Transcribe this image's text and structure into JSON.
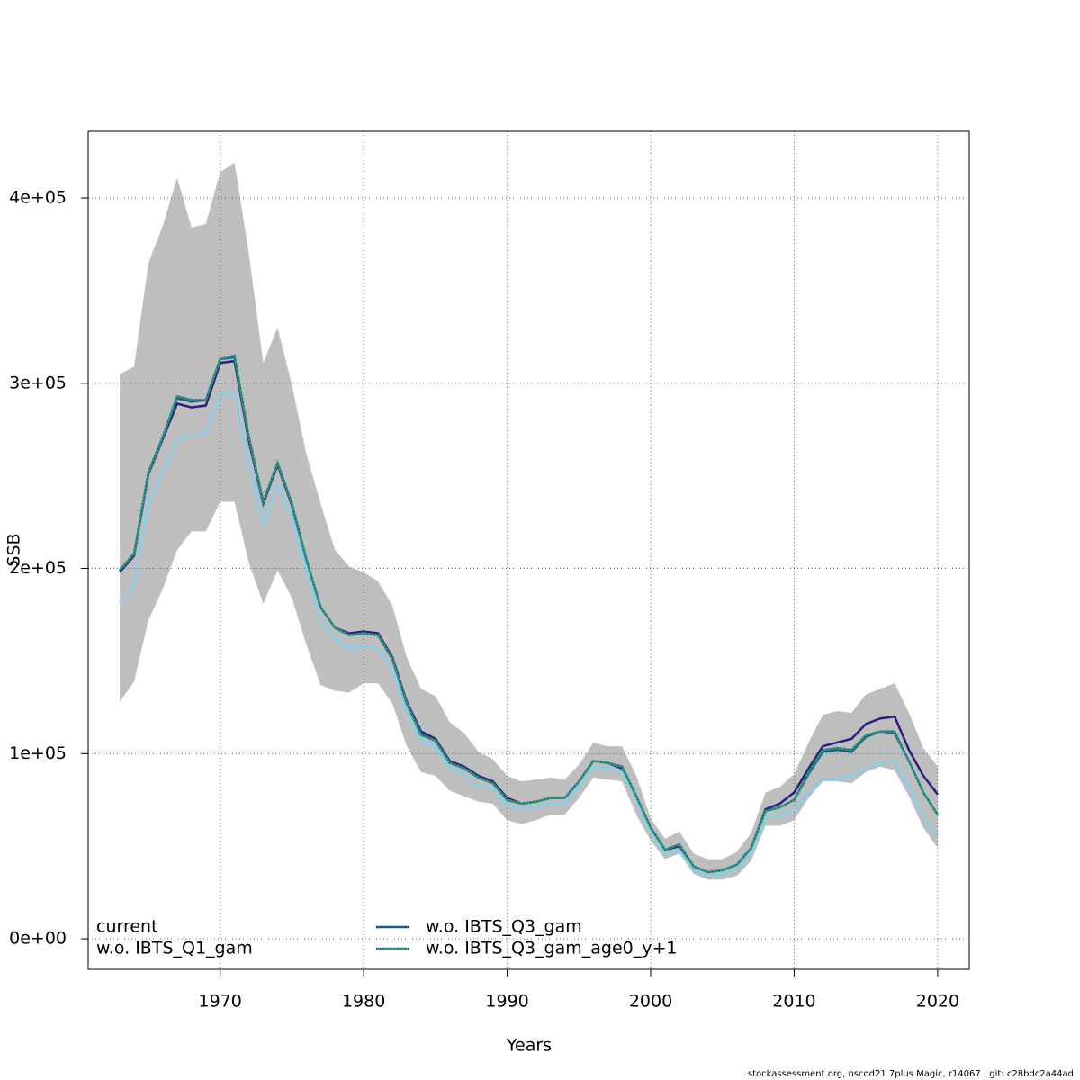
{
  "chart_data": {
    "type": "line",
    "xlabel": "Years",
    "ylabel": "SSB",
    "footer": "stockassessment.org, nscod21 7plus Magic, r14067 , git: c28bdc2a44ad",
    "xlim": [
      1960.8,
      2022.2
    ],
    "ylim": [
      -16500,
      436000
    ],
    "xticks": [
      1970,
      1980,
      1990,
      2000,
      2010,
      2020
    ],
    "yticks": [
      {
        "value": 0,
        "label": "0e+00"
      },
      {
        "value": 100000,
        "label": "1e+05"
      },
      {
        "value": 200000,
        "label": "2e+05"
      },
      {
        "value": 300000,
        "label": "3e+05"
      },
      {
        "value": 400000,
        "label": "4e+05"
      }
    ],
    "grid": true,
    "legend": "bottom-left",
    "x": [
      1963,
      1964,
      1965,
      1966,
      1967,
      1968,
      1969,
      1970,
      1971,
      1972,
      1973,
      1974,
      1975,
      1976,
      1977,
      1978,
      1979,
      1980,
      1981,
      1982,
      1983,
      1984,
      1985,
      1986,
      1987,
      1988,
      1989,
      1990,
      1991,
      1992,
      1993,
      1994,
      1995,
      1996,
      1997,
      1998,
      1999,
      2000,
      2001,
      2002,
      2003,
      2004,
      2005,
      2006,
      2007,
      2008,
      2009,
      2010,
      2011,
      2012,
      2013,
      2014,
      2015,
      2016,
      2017,
      2018,
      2019,
      2020
    ],
    "band": {
      "color": "#bebebe",
      "upper": [
        305000.0,
        309000.0,
        365000.0,
        385000.0,
        411000.0,
        384000.0,
        386000.0,
        414000.0,
        419000.0,
        370000.0,
        311000.0,
        330000.0,
        299000.0,
        262000.0,
        235000.0,
        210000.0,
        201000.0,
        198000.0,
        193000.0,
        180000.0,
        152000.0,
        135000.0,
        131000.0,
        117000.0,
        111000.0,
        101000.0,
        97000.0,
        88000.0,
        85000.0,
        86000.0,
        87000.0,
        86000.0,
        94000.0,
        106000.0,
        104000.0,
        104000.0,
        88000.0,
        65000.0,
        54000.0,
        58000.0,
        46000.0,
        43000.0,
        43000.0,
        47000.0,
        57000.0,
        79000.0,
        82000.0,
        89000.0,
        106000.0,
        121000.0,
        123000.0,
        122000.0,
        132000.0,
        135000.0,
        138000.0,
        122000.0,
        103000.0,
        93000.0
      ],
      "lower": [
        128000.0,
        139000.0,
        172000.0,
        189000.0,
        210000.0,
        220000.0,
        220000.0,
        236000.0,
        236000.0,
        203000.0,
        181000.0,
        199000.0,
        184000.0,
        159000.0,
        137000.0,
        134000.0,
        133000.0,
        138000.0,
        138000.0,
        127000.0,
        104000.0,
        90000.0,
        88000.0,
        80000.0,
        77000.0,
        74000.0,
        73000.0,
        64000.0,
        62000.0,
        64000.0,
        67000.0,
        67000.0,
        76000.0,
        87000.0,
        86000.0,
        85000.0,
        67000.0,
        53000.0,
        43000.0,
        46000.0,
        35000.0,
        32000.0,
        32000.0,
        34000.0,
        42000.0,
        61000.0,
        61000.0,
        64000.0,
        76000.0,
        85000.0,
        85000.0,
        84000.0,
        90000.0,
        93000.0,
        91000.0,
        77000.0,
        60000.0,
        49000.0
      ]
    },
    "series": [
      {
        "name": "current",
        "color": "#2d1c7f",
        "linestyle": "solid",
        "values": [
          198000.0,
          207000.0,
          251000.0,
          270000.0,
          289000.0,
          287000.0,
          288000.0,
          311000.0,
          312000.0,
          269000.0,
          235000.0,
          256000.0,
          234000.0,
          205000.0,
          179000.0,
          168000.0,
          165000.0,
          166000.0,
          165000.0,
          152000.0,
          128000.0,
          112000.0,
          108000.0,
          96000.0,
          93000.0,
          88000.0,
          85000.0,
          76000.0,
          73000.0,
          74000.0,
          76000.0,
          76000.0,
          85000.0,
          96000.0,
          95000.0,
          92000.0,
          77000.0,
          60000.0,
          48000.0,
          50000.0,
          39000.0,
          36000.0,
          37000.0,
          40000.0,
          49000.0,
          70000.0,
          73000.0,
          79000.0,
          92000.0,
          104000.0,
          106000.0,
          108000.0,
          116000.0,
          119000.0,
          120000.0,
          102000.0,
          88000.0,
          78000.0
        ]
      },
      {
        "name": "w.o. IBTS_Q1_gam",
        "color": "#87ceeb",
        "linestyle": "solid",
        "values": [
          182000.0,
          191000.0,
          236000.0,
          252000.0,
          270000.0,
          272000.0,
          273000.0,
          294000.0,
          295000.0,
          255000.0,
          224000.0,
          245000.0,
          228000.0,
          200000.0,
          172000.0,
          162000.0,
          157000.0,
          158000.0,
          157000.0,
          145000.0,
          122000.0,
          107000.0,
          104000.0,
          92000.0,
          89000.0,
          83000.0,
          81000.0,
          72000.0,
          70000.0,
          71000.0,
          73000.0,
          73000.0,
          82000.0,
          93000.0,
          92000.0,
          90000.0,
          75000.0,
          58000.0,
          46000.0,
          48000.0,
          37000.0,
          34000.0,
          35000.0,
          38000.0,
          46000.0,
          66000.0,
          67000.0,
          70000.0,
          79000.0,
          86000.0,
          87000.0,
          88000.0,
          92000.0,
          95000.0,
          96000.0,
          82000.0,
          66000.0,
          55000.0
        ]
      },
      {
        "name": "w.o. IBTS_Q3_gam",
        "color": "#1f5f8b",
        "linestyle": "dotted",
        "values": [
          199000.0,
          208000.0,
          252000.0,
          271000.0,
          292000.0,
          290000.0,
          291000.0,
          313000.0,
          314000.0,
          271000.0,
          236000.0,
          257000.0,
          235000.0,
          205000.0,
          179000.0,
          168000.0,
          164000.0,
          165000.0,
          164000.0,
          151000.0,
          127000.0,
          111000.0,
          107000.0,
          95000.0,
          92000.0,
          87000.0,
          84000.0,
          75000.0,
          73000.0,
          74000.0,
          76000.0,
          76000.0,
          85000.0,
          96000.0,
          95000.0,
          93000.0,
          77000.0,
          60000.0,
          48000.0,
          51000.0,
          39000.0,
          36000.0,
          37000.0,
          40000.0,
          49000.0,
          69000.0,
          71000.0,
          75000.0,
          89000.0,
          101000.0,
          102000.0,
          101000.0,
          109000.0,
          112000.0,
          111000.0,
          96000.0,
          79000.0,
          67000.0
        ]
      },
      {
        "name": "w.o. IBTS_Q3_gam_age0_y+1",
        "color": "#2e9c85",
        "linestyle": "dotted",
        "values": [
          199000.0,
          208000.0,
          252000.0,
          271000.0,
          293000.0,
          291000.0,
          291000.0,
          313000.0,
          315000.0,
          271000.0,
          236000.0,
          257000.0,
          235000.0,
          205000.0,
          179000.0,
          168000.0,
          164000.0,
          165000.0,
          164000.0,
          151000.0,
          127000.0,
          110000.0,
          107000.0,
          95000.0,
          92000.0,
          87000.0,
          84000.0,
          75000.0,
          73000.0,
          74000.0,
          76000.0,
          76000.0,
          85000.0,
          96000.0,
          95000.0,
          93000.0,
          77000.0,
          60000.0,
          48000.0,
          51000.0,
          39000.0,
          36000.0,
          37000.0,
          40000.0,
          49000.0,
          69000.0,
          71000.0,
          75000.0,
          90000.0,
          102000.0,
          103000.0,
          102000.0,
          110000.0,
          112000.0,
          112000.0,
          96000.0,
          79000.0,
          67000.0
        ]
      }
    ]
  }
}
